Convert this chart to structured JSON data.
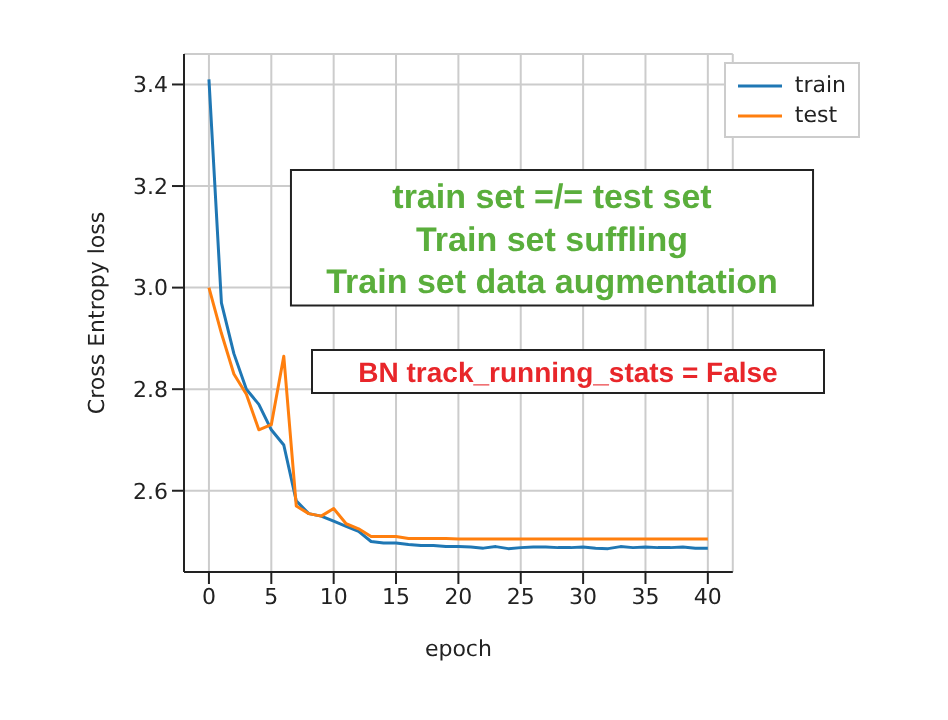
{
  "chart_data": {
    "type": "line",
    "xlabel": "epoch",
    "ylabel": "Cross Entropy loss",
    "x": [
      0,
      1,
      2,
      3,
      4,
      5,
      6,
      7,
      8,
      9,
      10,
      11,
      12,
      13,
      14,
      15,
      16,
      17,
      18,
      19,
      20,
      21,
      22,
      23,
      24,
      25,
      26,
      27,
      28,
      29,
      30,
      31,
      32,
      33,
      34,
      35,
      36,
      37,
      38,
      39,
      40
    ],
    "series": [
      {
        "name": "train",
        "color": "#1f77b4",
        "values": [
          3.41,
          2.97,
          2.87,
          2.8,
          2.77,
          2.72,
          2.69,
          2.58,
          2.555,
          2.55,
          2.54,
          2.53,
          2.52,
          2.5,
          2.497,
          2.497,
          2.494,
          2.492,
          2.492,
          2.49,
          2.49,
          2.489,
          2.487,
          2.49,
          2.486,
          2.488,
          2.489,
          2.489,
          2.488,
          2.488,
          2.489,
          2.487,
          2.486,
          2.49,
          2.488,
          2.489,
          2.488,
          2.488,
          2.489,
          2.487,
          2.487
        ]
      },
      {
        "name": "test",
        "color": "#ff7f0e",
        "values": [
          3.0,
          2.91,
          2.83,
          2.79,
          2.72,
          2.73,
          2.865,
          2.57,
          2.555,
          2.55,
          2.565,
          2.535,
          2.525,
          2.51,
          2.51,
          2.51,
          2.506,
          2.506,
          2.506,
          2.506,
          2.505,
          2.505,
          2.505,
          2.505,
          2.505,
          2.505,
          2.505,
          2.505,
          2.505,
          2.505,
          2.505,
          2.505,
          2.505,
          2.505,
          2.505,
          2.505,
          2.505,
          2.505,
          2.505,
          2.505,
          2.505
        ]
      }
    ],
    "xlim": [
      -2,
      42
    ],
    "xticks": [
      0,
      5,
      10,
      15,
      20,
      25,
      30,
      35,
      40
    ],
    "ylim": [
      2.44,
      3.46
    ],
    "yticks": [
      {
        "value": 2.6,
        "label": "2.6"
      },
      {
        "value": 2.8,
        "label": "2.8"
      },
      {
        "value": 3.0,
        "label": "3.0"
      },
      {
        "value": 3.2,
        "label": "3.2"
      },
      {
        "value": 3.4,
        "label": "3.4"
      }
    ],
    "grid": true,
    "legend": "top right",
    "annotations": [
      "train set =/= test set\nTrain set suffling\nTrain set data augmentation",
      "BN track_running_stats = False"
    ]
  }
}
